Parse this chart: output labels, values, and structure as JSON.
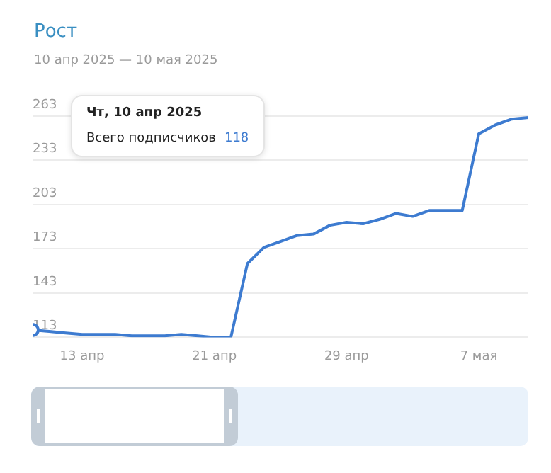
{
  "chart_data": {
    "type": "line",
    "title": "Рост",
    "subtitle": "10 апр 2025 — 10 мая 2025",
    "x": [
      "2025-04-10",
      "2025-04-11",
      "2025-04-12",
      "2025-04-13",
      "2025-04-14",
      "2025-04-15",
      "2025-04-16",
      "2025-04-17",
      "2025-04-18",
      "2025-04-19",
      "2025-04-20",
      "2025-04-21",
      "2025-04-22",
      "2025-04-23",
      "2025-04-24",
      "2025-04-25",
      "2025-04-26",
      "2025-04-27",
      "2025-04-28",
      "2025-04-29",
      "2025-04-30",
      "2025-05-01",
      "2025-05-02",
      "2025-05-03",
      "2025-05-04",
      "2025-05-05",
      "2025-05-06",
      "2025-05-07",
      "2025-05-08",
      "2025-05-09",
      "2025-05-10"
    ],
    "series": [
      {
        "color": "#3d7bd0",
        "values": [
          118,
          117,
          116,
          115,
          115,
          115,
          114,
          114,
          114,
          115,
          114,
          113,
          113,
          163,
          174,
          178,
          182,
          183,
          189,
          191,
          190,
          193,
          197,
          195,
          199,
          199,
          199,
          251,
          257,
          261,
          262
        ]
      }
    ],
    "xlim": [
      "2025-04-10",
      "2025-05-10"
    ],
    "xticks": [
      {
        "value": "2025-04-13",
        "label": "13 апр"
      },
      {
        "value": "2025-04-21",
        "label": "21 апр"
      },
      {
        "value": "2025-04-29",
        "label": "29 апр"
      },
      {
        "value": "2025-05-07",
        "label": "7 мая"
      }
    ],
    "ylim": [
      113,
      263
    ],
    "yticks": [
      113,
      143,
      173,
      203,
      233,
      263
    ],
    "grid": "y",
    "legend": false,
    "line_style": "solid",
    "annotations": [
      "Чт, 10 апр 2025",
      "Всего подписчиков",
      "118"
    ]
  }
}
